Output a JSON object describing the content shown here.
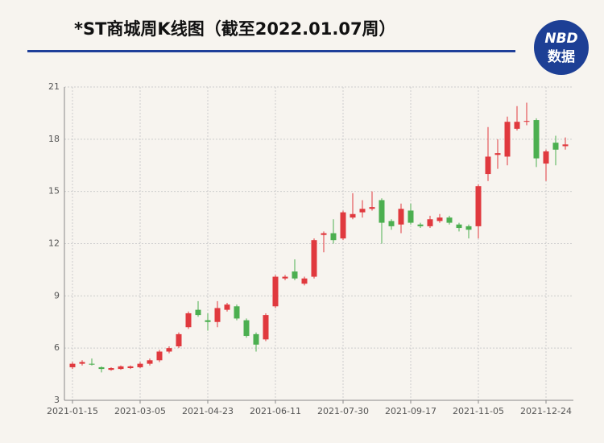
{
  "chart_data": {
    "type": "candlestick",
    "title": "*ST商城周K线图（截至2022.01.07周）",
    "logo": {
      "top": "NBD",
      "bottom": "数据"
    },
    "categories": [
      "2021-01-15",
      null,
      null,
      null,
      null,
      null,
      null,
      "2021-03-05",
      null,
      null,
      null,
      null,
      null,
      null,
      "2021-04-23",
      null,
      null,
      null,
      null,
      null,
      null,
      "2021-06-11",
      null,
      null,
      null,
      null,
      null,
      null,
      "2021-07-30",
      null,
      null,
      null,
      null,
      null,
      null,
      "2021-09-17",
      null,
      null,
      null,
      null,
      null,
      null,
      "2021-11-05",
      null,
      null,
      null,
      null,
      null,
      null,
      "2021-12-24",
      null,
      null
    ],
    "open": [
      4.9,
      5.1,
      5.1,
      4.9,
      4.75,
      4.8,
      4.85,
      4.9,
      5.1,
      5.3,
      5.8,
      6.1,
      7.2,
      8.2,
      7.6,
      7.5,
      8.2,
      8.4,
      7.6,
      6.8,
      6.5,
      8.4,
      10.0,
      10.4,
      9.7,
      10.1,
      12.5,
      12.6,
      12.3,
      13.5,
      13.8,
      14.0,
      14.5,
      13.3,
      13.1,
      13.9,
      13.1,
      13.0,
      13.3,
      13.5,
      13.1,
      13.0,
      13.0,
      16.0,
      17.1,
      17.0,
      18.6,
      19.0,
      19.1,
      16.6,
      17.8,
      17.6
    ],
    "close": [
      5.1,
      5.2,
      5.05,
      4.8,
      4.85,
      4.95,
      4.95,
      5.1,
      5.3,
      5.8,
      6.0,
      6.8,
      8.0,
      7.9,
      7.5,
      8.3,
      8.5,
      7.7,
      6.7,
      6.2,
      7.9,
      10.1,
      10.1,
      10.0,
      10.0,
      12.2,
      12.6,
      12.2,
      13.8,
      13.7,
      14.0,
      14.1,
      13.2,
      13.0,
      14.0,
      13.2,
      13.0,
      13.4,
      13.5,
      13.2,
      12.9,
      12.8,
      15.3,
      17.0,
      17.2,
      19.0,
      19.0,
      19.05,
      16.9,
      17.3,
      17.4,
      17.7
    ],
    "high": [
      5.2,
      5.3,
      5.4,
      4.95,
      4.9,
      5.0,
      5.0,
      5.2,
      5.4,
      5.9,
      6.1,
      6.9,
      8.1,
      8.7,
      8.0,
      8.7,
      8.6,
      8.5,
      7.7,
      6.9,
      8.0,
      10.2,
      10.2,
      11.1,
      10.1,
      12.3,
      12.7,
      13.4,
      13.9,
      14.9,
      14.5,
      15.0,
      14.6,
      13.4,
      14.3,
      14.3,
      13.2,
      13.6,
      13.7,
      13.6,
      13.2,
      13.1,
      15.4,
      18.7,
      18.0,
      19.3,
      19.9,
      20.1,
      19.2,
      17.4,
      18.2,
      18.1
    ],
    "low": [
      4.8,
      5.0,
      5.0,
      4.6,
      4.7,
      4.75,
      4.8,
      4.85,
      5.0,
      5.2,
      5.7,
      6.0,
      7.1,
      7.8,
      7.0,
      7.2,
      8.1,
      7.6,
      6.6,
      5.8,
      6.4,
      8.3,
      9.9,
      9.9,
      9.6,
      10.0,
      11.5,
      12.0,
      12.2,
      13.4,
      13.5,
      13.9,
      12.0,
      12.8,
      12.6,
      13.1,
      12.9,
      12.9,
      13.2,
      13.1,
      12.7,
      12.3,
      12.3,
      15.6,
      16.3,
      16.5,
      18.5,
      18.8,
      16.4,
      15.6,
      16.5,
      17.4
    ],
    "up_color": "#e0393e",
    "down_color": "#4caf50",
    "ylim": [
      3,
      21
    ],
    "yticks": [
      3,
      6,
      9,
      12,
      15,
      18,
      21
    ],
    "grid": true
  }
}
